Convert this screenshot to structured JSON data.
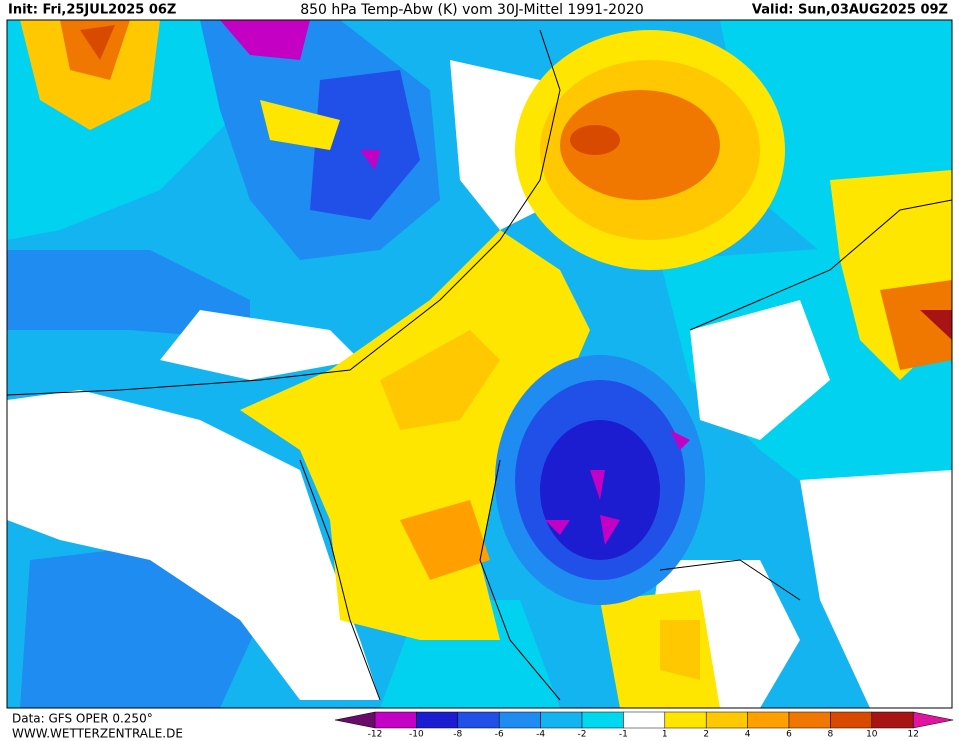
{
  "header": {
    "init": "Init: Fri,25JUL2025 06Z",
    "title": "850 hPa Temp-Abw (K) vom 30J-Mittel 1991-2020",
    "valid": "Valid: Sun,03AUG2025 09Z"
  },
  "footer": {
    "source": "Data: GFS OPER 0.250°",
    "site": "WWW.WETTERZENTRALE.DE"
  },
  "colorbar": {
    "labels": [
      -12,
      -10,
      -8,
      -6,
      -4,
      -2,
      -1,
      1,
      2,
      4,
      6,
      8,
      10,
      12
    ],
    "colors": [
      "#6a0a6a",
      "#c400c4",
      "#1c1cd0",
      "#2050e8",
      "#1e8cf0",
      "#14b4f0",
      "#00d8f0",
      "#ffffff",
      "#ffe600",
      "#ffc800",
      "#ffa000",
      "#f07800",
      "#d84a00",
      "#a81414",
      "#e0149e"
    ]
  }
}
